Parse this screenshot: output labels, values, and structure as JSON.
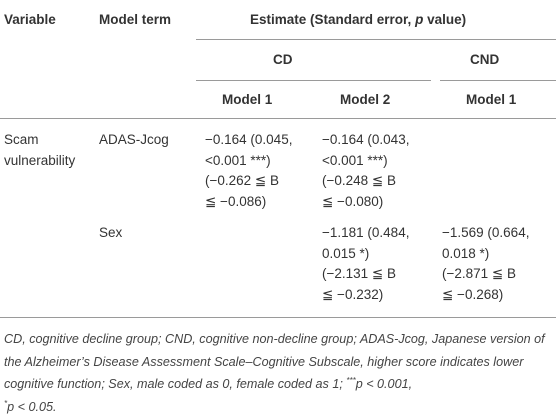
{
  "table": {
    "header": {
      "variable": "Variable",
      "model_term": "Model term",
      "estimate": [
        "Estimate (Standard error, ",
        "p",
        " value)"
      ],
      "groups": [
        "CD",
        "CND"
      ],
      "models": [
        "Model 1",
        "Model 2",
        "Model 1"
      ]
    },
    "rows": [
      {
        "variable": [
          "Scam",
          "vulnerability"
        ],
        "model_term": "ADAS-Jcog",
        "cells": [
          [
            "−0.164 (0.045,",
            "<0.001 ***)",
            "(−0.262 ≦ B",
            "≦ −0.086)"
          ],
          [
            "−0.164 (0.043,",
            "<0.001 ***)",
            "(−0.248 ≦ B",
            "≦ −0.080)"
          ],
          []
        ]
      },
      {
        "model_term": "Sex",
        "cells": [
          [],
          [
            "−1.181 (0.484,",
            "0.015 *)",
            "(−2.131 ≦ B",
            "≦ −0.232)"
          ],
          [
            "−1.569 (0.664,",
            "0.018 *)",
            "(−2.871 ≦ B",
            "≦ −0.268)"
          ]
        ]
      }
    ],
    "footnote": [
      "CD, cognitive decline group; CND, cognitive non-decline group; ADAS-Jcog, Japanese version of the Alzheimer’s Disease Assessment Scale–Cognitive Subscale, higher score indicates lower cognitive function; Sex, male coded as 0, female coded as 1; ",
      "***",
      "p",
      " < 0.001, ",
      "*",
      "p",
      " < 0.05."
    ]
  }
}
